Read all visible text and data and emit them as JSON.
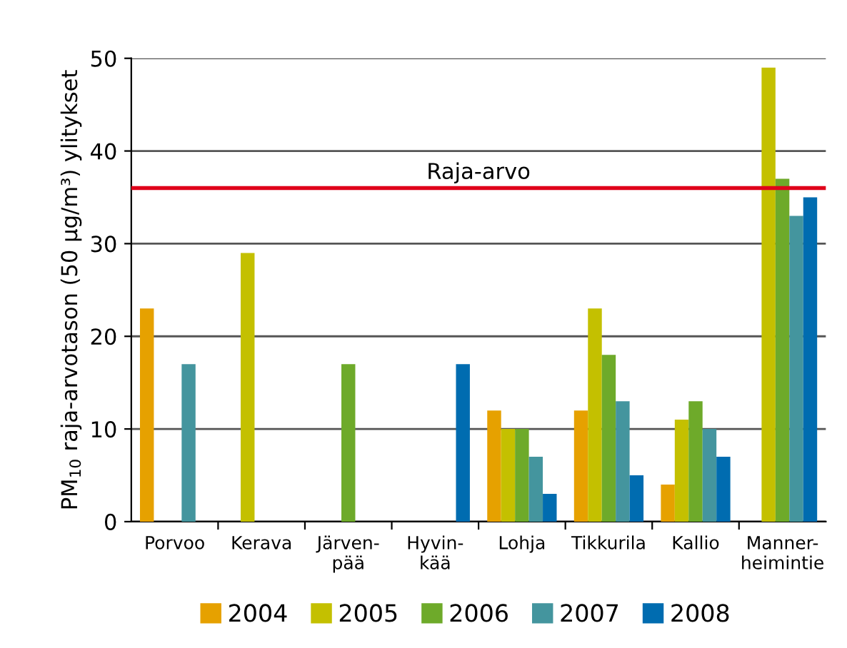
{
  "chart_data": {
    "type": "bar",
    "ylabel": "PM$_{10}$ raja-arvotason (50 µg/m³) ylitykset",
    "categories": [
      "Porvoo",
      "Kerava",
      "Järven-\npää",
      "Hyvin-\nkää",
      "Lohja",
      "Tikkurila",
      "Kallio",
      "Manner-\nheimintie"
    ],
    "series": [
      {
        "name": "2004",
        "color": "#e6a100",
        "values": [
          23,
          null,
          null,
          null,
          12,
          12,
          4,
          null
        ]
      },
      {
        "name": "2005",
        "color": "#c4c000",
        "values": [
          null,
          29,
          null,
          null,
          10,
          23,
          11,
          49
        ]
      },
      {
        "name": "2006",
        "color": "#6eaa2a",
        "values": [
          null,
          null,
          17,
          null,
          10,
          18,
          13,
          37
        ]
      },
      {
        "name": "2007",
        "color": "#44959e",
        "values": [
          17,
          null,
          null,
          null,
          7,
          13,
          10,
          33
        ]
      },
      {
        "name": "2008",
        "color": "#006cb0",
        "values": [
          null,
          null,
          null,
          17,
          3,
          5,
          7,
          35
        ]
      }
    ],
    "ylim": [
      0,
      50
    ],
    "yticks": [
      0,
      10,
      20,
      30,
      40,
      50
    ],
    "grid": "y",
    "legend": "bottom",
    "ref_lines": [
      {
        "axis": "y",
        "value": 36,
        "label": "Raja-arvo",
        "color": "#e0001a"
      }
    ]
  }
}
